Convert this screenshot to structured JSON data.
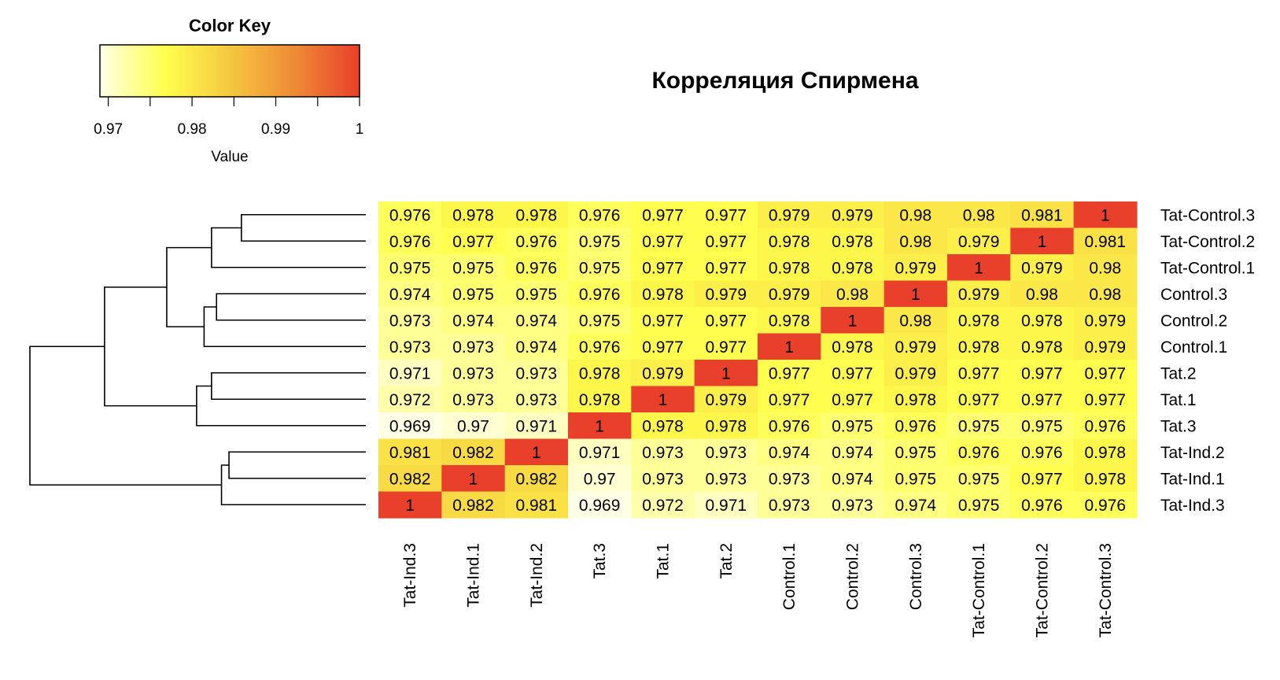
{
  "chart_data": {
    "type": "heatmap",
    "title": "Корреляция Спирмена",
    "color_key": {
      "title": "Color Key",
      "xlabel": "Value",
      "range": [
        0.969,
        1
      ],
      "ticks": [
        0.97,
        0.98,
        0.99,
        1
      ],
      "tick_labels": [
        "0.97",
        "0.98",
        "0.99",
        "1"
      ],
      "colors": [
        "#ffffe6",
        "#ffff4d",
        "#f5c840",
        "#ef8a37",
        "#e8402a"
      ]
    },
    "columns": [
      "Tat-Ind.3",
      "Tat-Ind.1",
      "Tat-Ind.2",
      "Tat.3",
      "Tat.1",
      "Tat.2",
      "Control.1",
      "Control.2",
      "Control.3",
      "Tat-Control.1",
      "Tat-Control.2",
      "Tat-Control.3"
    ],
    "rows": [
      "Tat-Control.3",
      "Tat-Control.2",
      "Tat-Control.1",
      "Control.3",
      "Control.2",
      "Control.1",
      "Tat.2",
      "Tat.1",
      "Tat.3",
      "Tat-Ind.2",
      "Tat-Ind.1",
      "Tat-Ind.3"
    ],
    "cells": [
      [
        "0.976",
        "0.978",
        "0.978",
        "0.976",
        "0.977",
        "0.977",
        "0.979",
        "0.979",
        "0.98",
        "0.98",
        "0.981",
        "1"
      ],
      [
        "0.976",
        "0.977",
        "0.976",
        "0.975",
        "0.977",
        "0.977",
        "0.978",
        "0.978",
        "0.98",
        "0.979",
        "1",
        "0.981"
      ],
      [
        "0.975",
        "0.975",
        "0.976",
        "0.975",
        "0.977",
        "0.977",
        "0.978",
        "0.978",
        "0.979",
        "1",
        "0.979",
        "0.98"
      ],
      [
        "0.974",
        "0.975",
        "0.975",
        "0.976",
        "0.978",
        "0.979",
        "0.979",
        "0.98",
        "1",
        "0.979",
        "0.98",
        "0.98"
      ],
      [
        "0.973",
        "0.974",
        "0.974",
        "0.975",
        "0.977",
        "0.977",
        "0.978",
        "1",
        "0.98",
        "0.978",
        "0.978",
        "0.979"
      ],
      [
        "0.973",
        "0.973",
        "0.974",
        "0.976",
        "0.977",
        "0.977",
        "1",
        "0.978",
        "0.979",
        "0.978",
        "0.978",
        "0.979"
      ],
      [
        "0.971",
        "0.973",
        "0.973",
        "0.978",
        "0.979",
        "1",
        "0.977",
        "0.977",
        "0.979",
        "0.977",
        "0.977",
        "0.977"
      ],
      [
        "0.972",
        "0.973",
        "0.973",
        "0.978",
        "1",
        "0.979",
        "0.977",
        "0.977",
        "0.978",
        "0.977",
        "0.977",
        "0.977"
      ],
      [
        "0.969",
        "0.97",
        "0.971",
        "1",
        "0.978",
        "0.978",
        "0.976",
        "0.975",
        "0.976",
        "0.975",
        "0.975",
        "0.976"
      ],
      [
        "0.981",
        "0.982",
        "1",
        "0.971",
        "0.973",
        "0.973",
        "0.974",
        "0.974",
        "0.975",
        "0.976",
        "0.976",
        "0.978"
      ],
      [
        "0.982",
        "1",
        "0.982",
        "0.97",
        "0.973",
        "0.973",
        "0.973",
        "0.974",
        "0.975",
        "0.975",
        "0.977",
        "0.978"
      ],
      [
        "1",
        "0.982",
        "0.981",
        "0.969",
        "0.972",
        "0.971",
        "0.973",
        "0.973",
        "0.974",
        "0.975",
        "0.976",
        "0.976"
      ]
    ],
    "row_dendrogram": {
      "merges": [
        [
          0,
          1,
          0.05
        ],
        [
          3,
          4,
          0.06
        ],
        [
          6,
          7,
          0.062
        ],
        [
          9,
          10,
          0.055
        ],
        [
          "c0",
          2,
          0.062
        ],
        [
          "c1",
          5,
          0.065
        ],
        [
          "c3",
          11,
          0.058
        ],
        [
          "c4",
          "c5",
          0.08
        ],
        [
          "c2",
          8,
          0.068
        ],
        [
          "c7",
          "c8",
          0.105
        ],
        [
          "c9",
          "c6",
          0.135
        ]
      ],
      "max_height": 0.135
    },
    "grid": false,
    "legend": "top-left"
  }
}
